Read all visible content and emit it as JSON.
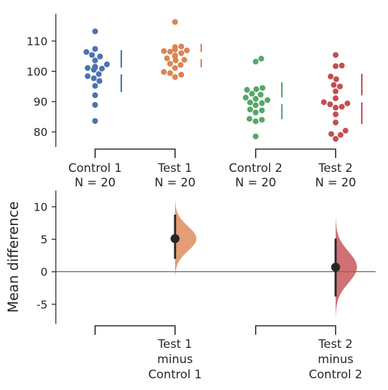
{
  "chart_data": [
    {
      "type": "scatter",
      "style": "swarm",
      "ylim": [
        75,
        119
      ],
      "yticks": [
        80,
        90,
        100,
        110
      ],
      "groups": [
        {
          "label": "Control 1",
          "n_label": "N = 20",
          "color": "#4c72b0",
          "values": [
            113.2,
            107.4,
            106.4,
            105.4,
            104.9,
            103.6,
            102.3,
            101.5,
            101.3,
            101.1,
            100.9,
            100.5,
            99.1,
            98.4,
            97.7,
            96.8,
            95.2,
            92.1,
            88.9,
            83.6
          ],
          "mean": 100.1,
          "sd": 6.9
        },
        {
          "label": "Test 1",
          "n_label": "N = 20",
          "color": "#dd8452",
          "values": [
            116.3,
            108.2,
            108.0,
            107.2,
            106.9,
            106.7,
            106.5,
            106.0,
            105.2,
            104.9,
            104.3,
            103.8,
            103.6,
            102.5,
            102.1,
            101.1,
            99.8,
            99.4,
            98.9,
            98.1
          ],
          "mean": 105.2,
          "sd": 3.9
        },
        {
          "label": "Control 2",
          "n_label": "N = 20",
          "color": "#55a868",
          "values": [
            104.2,
            103.2,
            94.5,
            94.1,
            93.9,
            92.6,
            92.3,
            91.3,
            90.9,
            90.5,
            89.7,
            89.5,
            88.8,
            87.4,
            87.1,
            86.4,
            84.3,
            84.0,
            83.5,
            78.5
          ],
          "mean": 90.3,
          "sd": 6.1
        },
        {
          "label": "Test 2",
          "n_label": "N = 20",
          "color": "#c44e52",
          "values": [
            105.4,
            101.9,
            101.7,
            98.3,
            97.4,
            95.5,
            95.0,
            93.4,
            91.1,
            89.8,
            89.4,
            89.1,
            88.3,
            88.0,
            85.8,
            83.1,
            80.4,
            79.3,
            79.0,
            77.7
          ],
          "mean": 90.9,
          "sd": 8.3
        }
      ]
    },
    {
      "type": "area",
      "style": "bootstrap-distribution",
      "ylabel": "Mean difference",
      "ylim": [
        -8,
        12.5
      ],
      "yticks": [
        -5,
        0,
        5,
        10
      ],
      "comparisons": [
        {
          "label_lines": [
            "Test 1",
            "minus",
            "Control 1"
          ],
          "group": 1,
          "color": "#dd8452",
          "estimate": 5.1,
          "ci": [
            2.0,
            8.8
          ],
          "dist_range": [
            -0.5,
            11.0
          ],
          "dist_sd": 1.9
        },
        {
          "label_lines": [
            "Test 2",
            "minus",
            "Control 2"
          ],
          "group": 3,
          "color": "#c44e52",
          "estimate": 0.7,
          "ci": [
            -3.8,
            5.1
          ],
          "dist_range": [
            -7.2,
            8.5
          ],
          "dist_sd": 2.4
        }
      ]
    }
  ]
}
